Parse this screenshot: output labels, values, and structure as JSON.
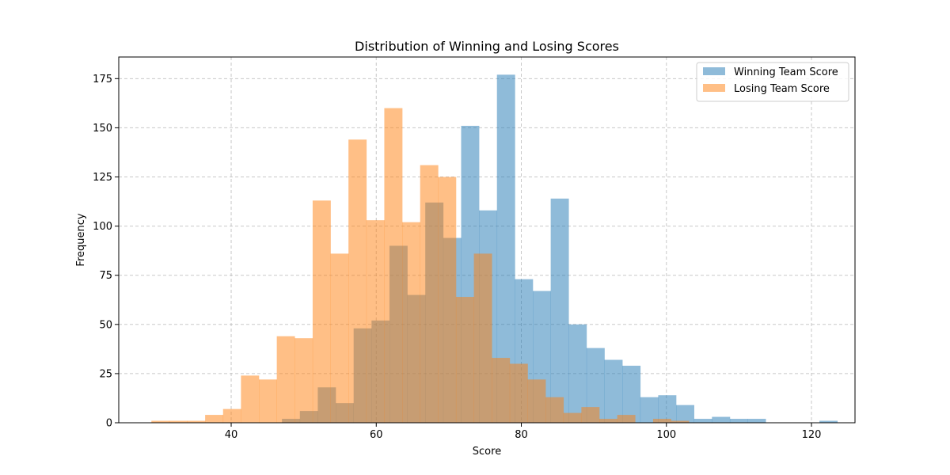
{
  "chart_data": {
    "type": "histogram",
    "title": "Distribution of Winning and Losing Scores",
    "xlabel": "Score",
    "ylabel": "Frequency",
    "xlim": [
      24.5,
      126
    ],
    "ylim": [
      0,
      186
    ],
    "x_ticks": [
      40,
      60,
      80,
      100,
      120
    ],
    "y_ticks": [
      0,
      25,
      50,
      75,
      100,
      125,
      150,
      175
    ],
    "grid": true,
    "legend_position": "top-right",
    "series": [
      {
        "name": "Winning Team Score",
        "color": "#1f77b4",
        "alpha": 0.5,
        "bin_start": 47.0,
        "bin_width": 2.47,
        "counts": [
          2,
          6,
          18,
          10,
          48,
          52,
          90,
          65,
          112,
          94,
          151,
          108,
          177,
          73,
          67,
          114,
          50,
          38,
          32,
          29,
          13,
          14,
          9,
          2,
          3,
          2,
          2,
          0,
          0,
          0,
          1
        ]
      },
      {
        "name": "Losing Team Score",
        "color": "#ff7f0e",
        "alpha": 0.5,
        "bin_start": 29.0,
        "bin_width": 2.47,
        "counts": [
          1,
          1,
          1,
          4,
          7,
          24,
          22,
          44,
          43,
          113,
          86,
          144,
          103,
          160,
          102,
          131,
          125,
          64,
          86,
          33,
          30,
          22,
          13,
          5,
          8,
          2,
          4,
          0,
          2,
          1
        ]
      }
    ]
  }
}
